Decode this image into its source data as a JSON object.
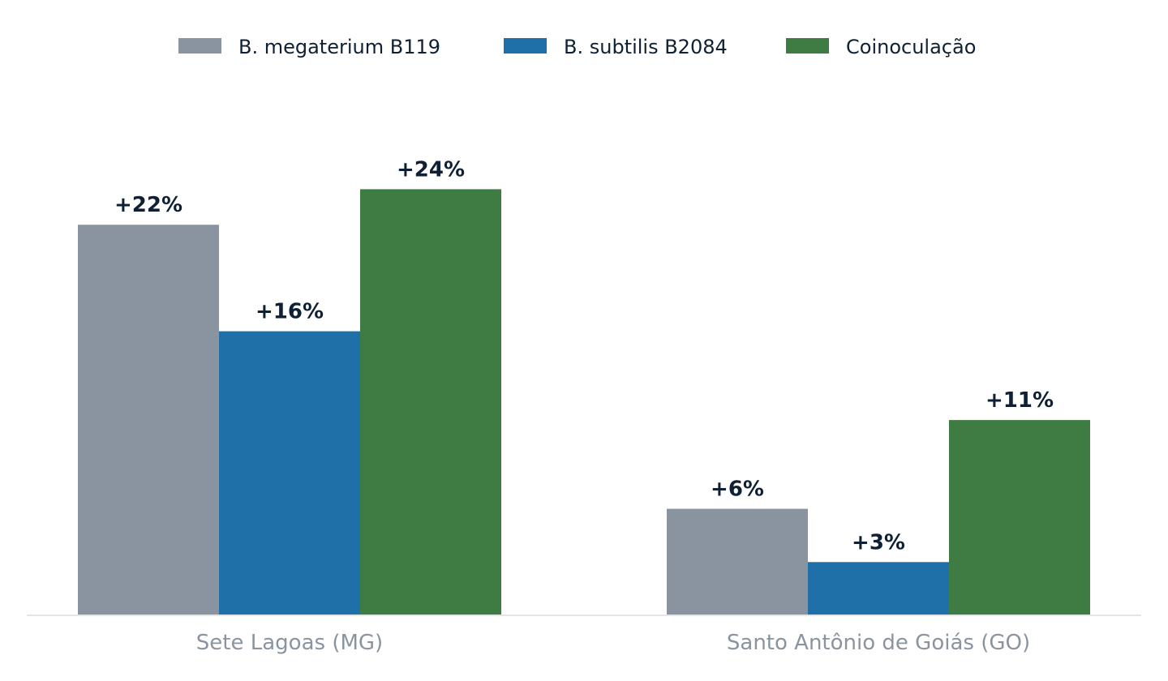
{
  "chart_data": {
    "type": "bar",
    "categories": [
      "Sete Lagoas (MG)",
      "Santo Antônio de Goiás (GO)"
    ],
    "series": [
      {
        "name": "B. megaterium B119",
        "color": "#8a94a0",
        "values": [
          22,
          6
        ],
        "labels": [
          "+22%",
          "+6%"
        ]
      },
      {
        "name": "B. subtilis B2084",
        "color": "#1f6fa8",
        "values": [
          16,
          3
        ],
        "labels": [
          "+16%",
          "+3%"
        ]
      },
      {
        "name": "Coinoculação",
        "color": "#3f7c44",
        "values": [
          24,
          11
        ],
        "labels": [
          "+24%",
          "+11%"
        ]
      }
    ],
    "ylim": [
      0,
      28
    ],
    "grid": false,
    "legend_position": "top-center",
    "axis_color": "#e3e6e9",
    "label_color": "#0f2035",
    "tick_color": "#8a94a0"
  }
}
